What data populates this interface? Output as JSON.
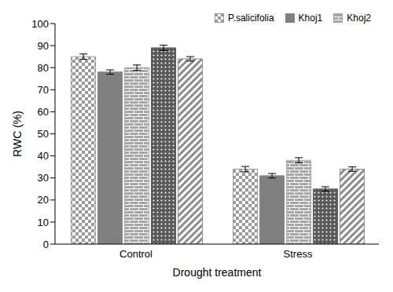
{
  "chart_data": {
    "type": "bar",
    "categories": [
      "Control",
      "Stress"
    ],
    "series": [
      {
        "name": "P.salicifolia",
        "color": "#9a9a9a",
        "values": [
          85,
          34
        ],
        "errors": [
          1.2,
          1.2
        ]
      },
      {
        "name": "Khoj1",
        "color": "#808080",
        "values": [
          78,
          31
        ],
        "errors": [
          1,
          1
        ]
      },
      {
        "name": "Khoj2",
        "color": "#a6a6a6",
        "values": [
          80,
          38
        ],
        "errors": [
          1.2,
          1.2
        ]
      },
      {
        "name": null,
        "color": "#5a5a5a",
        "values": [
          89,
          25
        ],
        "errors": [
          1.2,
          1
        ]
      },
      {
        "name": null,
        "color": "#8c8c8c",
        "values": [
          84,
          34
        ],
        "errors": [
          1,
          1
        ]
      }
    ],
    "x_label": "Drought treatment",
    "y_label": "RWC (%)",
    "ylim": [
      0,
      100
    ],
    "yticks": [
      0,
      10,
      20,
      30,
      40,
      50,
      60,
      70,
      80,
      90,
      100
    ],
    "grid": false,
    "legend": "upper right"
  }
}
